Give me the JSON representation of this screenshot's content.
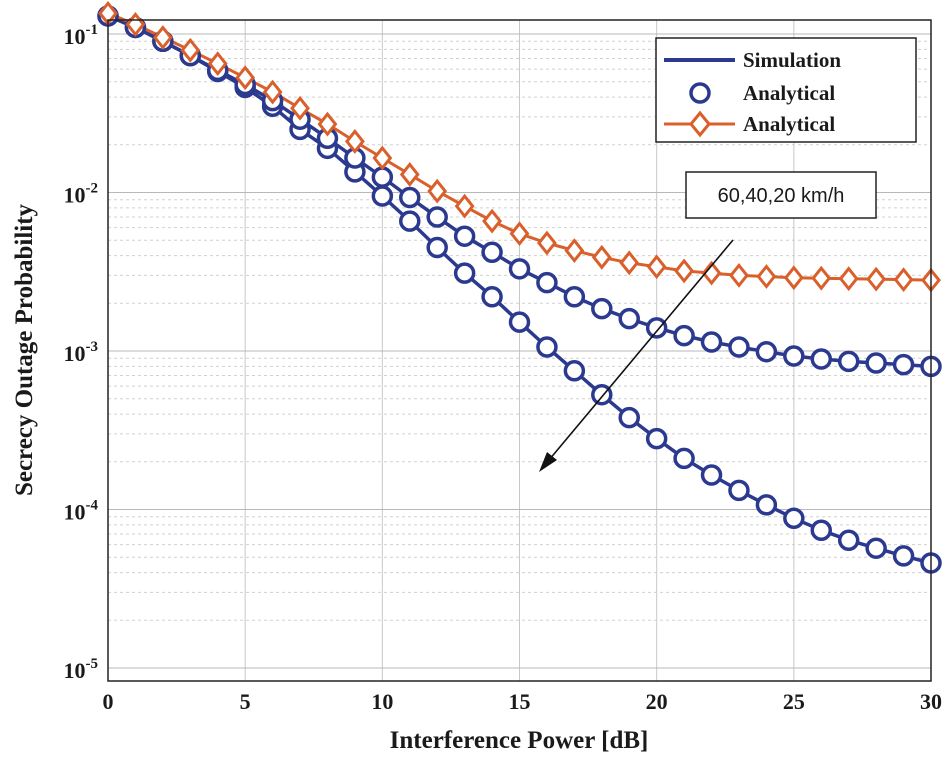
{
  "chart_data": {
    "type": "line",
    "title": "",
    "xlabel": "Interference Power [dB]",
    "ylabel": "Secrecy Outage Probability",
    "xlim": [
      0,
      30
    ],
    "ylim": [
      1e-05,
      0.15
    ],
    "yscale": "log",
    "grid": true,
    "x_ticks": [
      0,
      5,
      10,
      15,
      20,
      25,
      30
    ],
    "y_ticks": [
      {
        "value": 0.1,
        "base": "10",
        "exp": "-1"
      },
      {
        "value": 0.01,
        "base": "10",
        "exp": "-2"
      },
      {
        "value": 0.001,
        "base": "10",
        "exp": "-3"
      },
      {
        "value": 0.0001,
        "base": "10",
        "exp": "-4"
      },
      {
        "value": 1e-05,
        "base": "10",
        "exp": "-5"
      }
    ],
    "x": [
      0,
      1,
      2,
      3,
      4,
      5,
      6,
      7,
      8,
      9,
      10,
      11,
      12,
      13,
      14,
      15,
      16,
      17,
      18,
      19,
      20,
      21,
      22,
      23,
      24,
      25,
      26,
      27,
      28,
      29,
      30
    ],
    "series": [
      {
        "name": "60 km/h",
        "color": "#2b3a8f",
        "marker": "circle",
        "values": [
          0.13,
          0.11,
          0.09,
          0.073,
          0.058,
          0.046,
          0.035,
          0.025,
          0.019,
          0.0135,
          0.0095,
          0.0066,
          0.0045,
          0.0031,
          0.0022,
          0.00152,
          0.00106,
          0.00075,
          0.00053,
          0.00038,
          0.00028,
          0.00021,
          0.000165,
          0.000132,
          0.000107,
          8.8e-05,
          7.4e-05,
          6.4e-05,
          5.7e-05,
          5.1e-05,
          4.6e-05
        ]
      },
      {
        "name": "40 km/h",
        "color": "#2b3a8f",
        "marker": "circle",
        "values": [
          0.13,
          0.11,
          0.09,
          0.073,
          0.059,
          0.048,
          0.038,
          0.029,
          0.022,
          0.0165,
          0.0125,
          0.0093,
          0.007,
          0.0053,
          0.0042,
          0.0033,
          0.0027,
          0.0022,
          0.00185,
          0.0016,
          0.0014,
          0.00125,
          0.00114,
          0.00106,
          0.00099,
          0.00093,
          0.00089,
          0.00086,
          0.00084,
          0.00082,
          0.0008
        ]
      },
      {
        "name": "20 km/h",
        "color": "#d95f2b",
        "marker": "diamond",
        "values": [
          0.135,
          0.115,
          0.095,
          0.079,
          0.065,
          0.053,
          0.043,
          0.034,
          0.027,
          0.021,
          0.0165,
          0.013,
          0.0102,
          0.0082,
          0.0066,
          0.0055,
          0.0048,
          0.0043,
          0.0039,
          0.0036,
          0.0034,
          0.0032,
          0.0031,
          0.003,
          0.00295,
          0.0029,
          0.00288,
          0.00286,
          0.00284,
          0.00282,
          0.0028
        ]
      }
    ],
    "legend": {
      "position": "top-right",
      "entries": [
        {
          "label": "Simulation",
          "style": "line",
          "color": "#2b3a8f"
        },
        {
          "label": "Analytical",
          "style": "circle",
          "color": "#2b3a8f"
        },
        {
          "label": "Analytical",
          "style": "diamond-line",
          "color": "#d95f2b"
        }
      ]
    },
    "annotation": {
      "text": "60,40,20 km/h",
      "arrow": "from 22 dB toward 15.7 dB"
    }
  }
}
